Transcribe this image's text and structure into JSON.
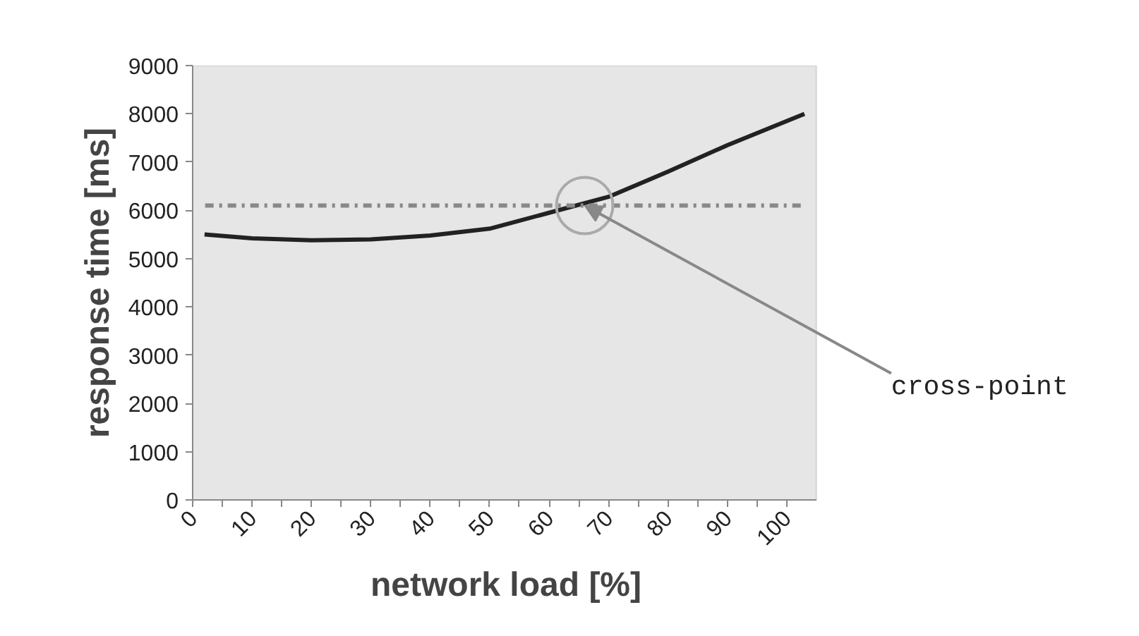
{
  "chart_data": {
    "type": "line",
    "xlabel": "network load [%]",
    "ylabel": "response time [ms]",
    "x": [
      2,
      10,
      20,
      30,
      40,
      50,
      60,
      70,
      80,
      90,
      100,
      103
    ],
    "series": [
      {
        "color": "#222222",
        "values": [
          5500,
          5420,
          5380,
          5400,
          5480,
          5620,
          5950,
          6280,
          6800,
          7350,
          7850,
          8000
        ]
      }
    ],
    "xlim": [
      0,
      105
    ],
    "xticks": [
      0,
      {
        "value": 5,
        "label": null
      },
      10,
      {
        "value": 15,
        "label": null
      },
      20,
      {
        "value": 25,
        "label": null
      },
      30,
      {
        "value": 35,
        "label": null
      },
      40,
      {
        "value": 45,
        "label": null
      },
      50,
      {
        "value": 55,
        "label": null
      },
      60,
      {
        "value": 65,
        "label": null
      },
      70,
      {
        "value": 75,
        "label": null
      },
      80,
      {
        "value": 85,
        "label": null
      },
      90,
      {
        "value": 95,
        "label": null
      },
      100
    ],
    "ylim": [
      0,
      9000
    ],
    "yticks": [
      0,
      1000,
      2000,
      3000,
      4000,
      5000,
      6000,
      7000,
      8000,
      9000
    ],
    "ref_lines": [
      {
        "axis": "y",
        "value": 6100,
        "color": "#888888",
        "line_style": "dashdot"
      }
    ],
    "annotations": [
      {
        "text": "cross-point",
        "x": 66,
        "y": 6100
      }
    ],
    "grid": false,
    "line_style": "solid"
  }
}
